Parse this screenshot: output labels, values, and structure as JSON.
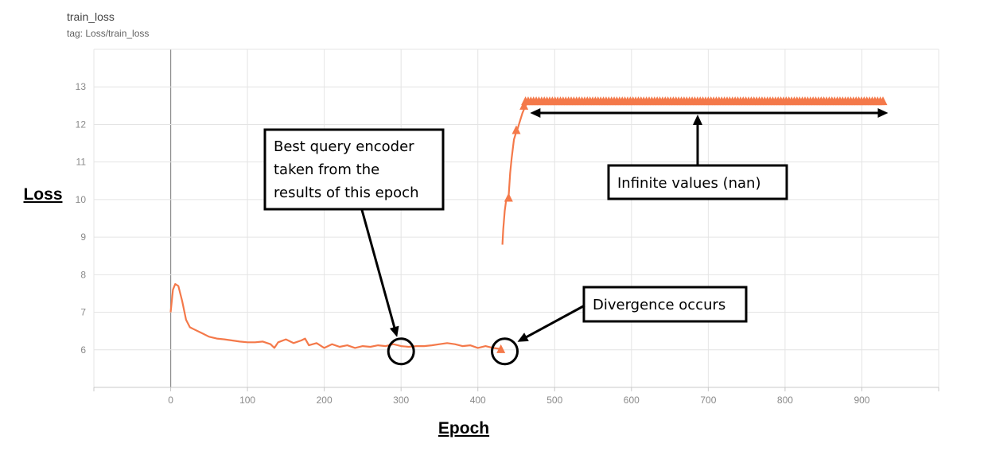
{
  "chart_data": {
    "type": "line",
    "title": "train_loss",
    "subtitle": "tag: Loss/train_loss",
    "xlabel": "Epoch",
    "ylabel": "Loss",
    "xlim": [
      -100,
      1000
    ],
    "ylim": [
      5,
      14
    ],
    "xticks": [
      0,
      100,
      200,
      300,
      400,
      500,
      600,
      700,
      800,
      900
    ],
    "yticks": [
      6,
      7,
      8,
      9,
      10,
      11,
      12,
      13
    ],
    "grid": true,
    "color": "#f4794a",
    "series": [
      {
        "x": [
          0,
          3,
          6,
          10,
          15,
          20,
          25,
          30,
          40,
          50,
          60,
          70,
          80,
          90,
          100,
          110,
          120,
          130,
          135,
          140,
          150,
          160,
          170,
          175,
          180,
          190,
          200,
          210,
          220,
          230,
          240,
          250,
          260,
          270,
          280,
          290,
          300,
          310,
          320,
          330,
          340,
          350,
          360,
          370,
          380,
          390,
          400,
          410,
          420,
          430
        ],
        "y": [
          7.0,
          7.6,
          7.75,
          7.7,
          7.3,
          6.8,
          6.6,
          6.55,
          6.45,
          6.35,
          6.3,
          6.28,
          6.25,
          6.22,
          6.2,
          6.2,
          6.22,
          6.15,
          6.05,
          6.2,
          6.28,
          6.18,
          6.25,
          6.3,
          6.12,
          6.18,
          6.05,
          6.15,
          6.08,
          6.12,
          6.05,
          6.1,
          6.08,
          6.12,
          6.1,
          6.15,
          6.1,
          6.08,
          6.1,
          6.1,
          6.12,
          6.15,
          6.18,
          6.15,
          6.1,
          6.12,
          6.05,
          6.1,
          6.05,
          6.02
        ]
      },
      {
        "x": [
          432,
          433,
          435,
          437,
          440,
          442,
          444,
          447,
          450,
          452,
          455,
          458,
          462,
          466
        ],
        "y": [
          8.8,
          9.2,
          9.7,
          10.0,
          10.05,
          10.7,
          11.1,
          11.6,
          11.8,
          11.9,
          12.1,
          12.3,
          12.5,
          12.6
        ]
      }
    ],
    "markers": [
      {
        "x": 430,
        "y": 6.02
      },
      {
        "x": 440,
        "y": 10.05
      },
      {
        "x": 450,
        "y": 11.85
      },
      {
        "x": 460,
        "y": 12.5
      }
    ],
    "nan_region": {
      "x_start": 462,
      "x_end": 928,
      "y": 12.62
    },
    "annotations": {
      "best": {
        "lines": [
          "Best query encoder",
          "taken from the",
          "results of this epoch"
        ],
        "target_x": 300,
        "target_y": 6.0
      },
      "divergence": {
        "text": "Divergence occurs",
        "target_x": 435,
        "target_y": 6.0
      },
      "nan": {
        "text": "Infinite values (nan)",
        "x_start": 468,
        "x_end": 928
      }
    }
  }
}
